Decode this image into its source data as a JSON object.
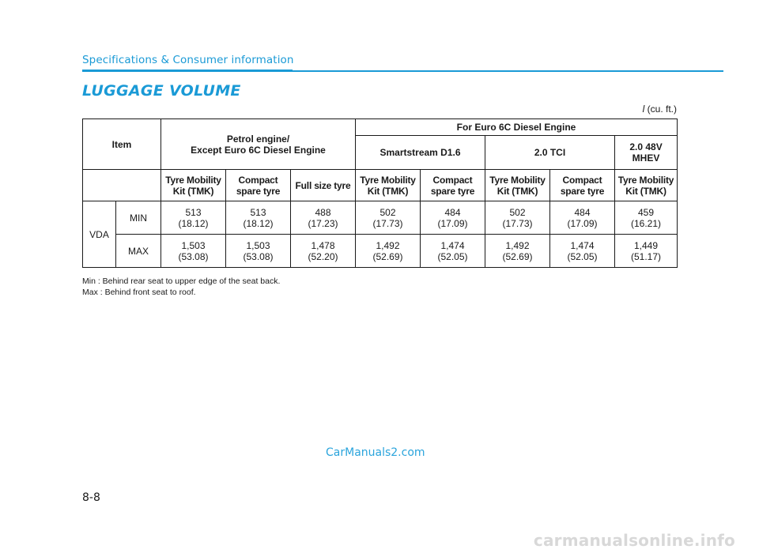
{
  "header": {
    "section": "Specifications & Consumer information",
    "title": "LUGGAGE VOLUME",
    "unit_symbol": "l",
    "unit_text": " (cu. ft.)"
  },
  "table": {
    "item_label": "Item",
    "group_petrol": [
      "Petrol engine/",
      "Except Euro 6C Diesel Engine"
    ],
    "group_diesel": "For Euro 6C Diesel Engine",
    "engines": {
      "smartstream": "Smartstream D1.6",
      "tci": "2.0 TCI",
      "mhev": [
        "2.0 48V",
        "MHEV"
      ]
    },
    "columns": [
      [
        "Tyre Mobility",
        "Kit (TMK)"
      ],
      [
        "Compact",
        "spare tyre"
      ],
      [
        "Full size tyre"
      ],
      [
        "Tyre Mobility",
        "Kit (TMK)"
      ],
      [
        "Compact",
        "spare tyre"
      ],
      [
        "Tyre Mobility",
        "Kit (TMK)"
      ],
      [
        "Compact",
        "spare tyre"
      ],
      [
        "Tyre Mobility",
        "Kit (TMK)"
      ]
    ],
    "row_group": "VDA",
    "rows": [
      {
        "label": "MIN",
        "values": [
          [
            "513",
            "(18.12)"
          ],
          [
            "513",
            "(18.12)"
          ],
          [
            "488",
            "(17.23)"
          ],
          [
            "502",
            "(17.73)"
          ],
          [
            "484",
            "(17.09)"
          ],
          [
            "502",
            "(17.73)"
          ],
          [
            "484",
            "(17.09)"
          ],
          [
            "459",
            "(16.21)"
          ]
        ]
      },
      {
        "label": "MAX",
        "values": [
          [
            "1,503",
            "(53.08)"
          ],
          [
            "1,503",
            "(53.08)"
          ],
          [
            "1,478",
            "(52.20)"
          ],
          [
            "1,492",
            "(52.69)"
          ],
          [
            "1,474",
            "(52.05)"
          ],
          [
            "1,492",
            "(52.69)"
          ],
          [
            "1,474",
            "(52.05)"
          ],
          [
            "1,449",
            "(51.17)"
          ]
        ]
      }
    ]
  },
  "footnotes": [
    "Min : Behind rear seat to upper edge of the seat back.",
    "Max : Behind front seat to roof."
  ],
  "watermark": "CarManuals2.com",
  "page_number": "8-8",
  "site_mark": "carmanualsonline.info"
}
